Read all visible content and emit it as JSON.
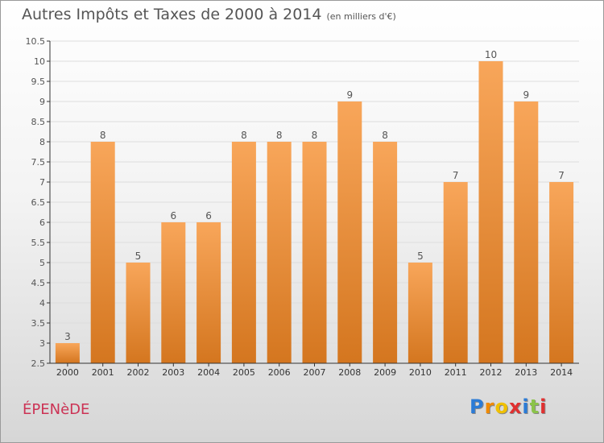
{
  "title": "Autres Impôts et Taxes de 2000 à 2014",
  "unit_note": "(en milliers d'€)",
  "commune": "ÉPENèDE",
  "logo": {
    "text": "Proxiti",
    "letter_colors": [
      "#2b7bd6",
      "#f08a00",
      "#f0c000",
      "#e03030",
      "#2b7bd6",
      "#8bc34a",
      "#e03030"
    ]
  },
  "colors": {
    "bar_top": "#f8a65a",
    "bar_bottom": "#d4761f",
    "axis": "#333333",
    "grid": "#dddddd",
    "text": "#555555"
  },
  "chart_data": {
    "type": "bar",
    "title": "Autres Impôts et Taxes de 2000 à 2014",
    "categories": [
      "2000",
      "2001",
      "2002",
      "2003",
      "2004",
      "2005",
      "2006",
      "2007",
      "2008",
      "2009",
      "2010",
      "2011",
      "2012",
      "2013",
      "2014"
    ],
    "values": [
      3,
      8,
      5,
      6,
      6,
      8,
      8,
      8,
      9,
      8,
      5,
      7,
      10,
      9,
      7
    ],
    "data_labels": [
      "3",
      "8",
      "5",
      "6",
      "6",
      "8",
      "8",
      "8",
      "9",
      "8",
      "5",
      "7",
      "10",
      "9",
      "7"
    ],
    "ylim": [
      2.5,
      10.5
    ],
    "yticks": [
      "2.5",
      "3",
      "3.5",
      "4",
      "4.5",
      "5",
      "5.5",
      "6",
      "6.5",
      "7",
      "7.5",
      "8",
      "8.5",
      "9",
      "9.5",
      "10",
      "10.5"
    ],
    "grid": true,
    "legend": "none"
  }
}
